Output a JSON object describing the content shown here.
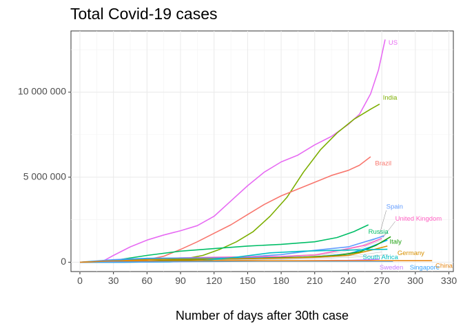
{
  "chart_data": {
    "type": "line",
    "title": "Total Covid-19 cases",
    "xlabel": "Number of days after 30th case",
    "ylabel": "",
    "xlim": [
      -8,
      334
    ],
    "ylim": [
      -550000,
      13600000
    ],
    "x_ticks": [
      0,
      30,
      60,
      90,
      120,
      150,
      180,
      210,
      240,
      270,
      300,
      330
    ],
    "y_ticks": [
      0,
      5000000,
      10000000
    ],
    "y_tick_labels": [
      "0",
      "5 000 000",
      "10 000 000"
    ],
    "grid": true,
    "legend": "none (direct labels)",
    "series": [
      {
        "name": "US",
        "color": "#e76bf3",
        "x": [
          0,
          20,
          30,
          45,
          60,
          75,
          90,
          105,
          120,
          135,
          150,
          165,
          180,
          195,
          210,
          225,
          240,
          250,
          260,
          267,
          273
        ],
        "y": [
          0,
          40000,
          400000,
          900000,
          1300000,
          1600000,
          1850000,
          2150000,
          2700000,
          3600000,
          4500000,
          5300000,
          5900000,
          6300000,
          6900000,
          7400000,
          8100000,
          8700000,
          9900000,
          11300000,
          13100000
        ]
      },
      {
        "name": "India",
        "color": "#7cae00",
        "x": [
          0,
          30,
          50,
          70,
          90,
          110,
          125,
          140,
          155,
          170,
          185,
          200,
          215,
          230,
          245,
          260,
          268
        ],
        "y": [
          0,
          500,
          5000,
          30000,
          150000,
          400000,
          750000,
          1200000,
          1800000,
          2700000,
          3800000,
          5300000,
          6600000,
          7600000,
          8400000,
          9000000,
          9300000
        ]
      },
      {
        "name": "Brazil",
        "color": "#f8766d",
        "x": [
          0,
          30,
          60,
          75,
          90,
          105,
          120,
          135,
          150,
          165,
          180,
          195,
          210,
          225,
          240,
          250,
          260
        ],
        "y": [
          0,
          20000,
          150000,
          350000,
          750000,
          1200000,
          1700000,
          2200000,
          2800000,
          3400000,
          3900000,
          4300000,
          4700000,
          5100000,
          5400000,
          5700000,
          6200000
        ]
      },
      {
        "name": "Russia",
        "color": "#00be67",
        "x": [
          0,
          30,
          60,
          90,
          120,
          150,
          180,
          210,
          230,
          245,
          258
        ],
        "y": [
          0,
          100000,
          400000,
          650000,
          800000,
          950000,
          1050000,
          1200000,
          1450000,
          1800000,
          2200000
        ]
      },
      {
        "name": "Spain",
        "color": "#619cff",
        "x": [
          0,
          30,
          60,
          90,
          120,
          150,
          180,
          210,
          240,
          255,
          265,
          272
        ],
        "y": [
          0,
          150000,
          230000,
          250000,
          270000,
          320000,
          450000,
          700000,
          900000,
          1200000,
          1400000,
          1550000
        ]
      },
      {
        "name": "United Kingdom",
        "color": "#ff61c3",
        "x": [
          0,
          30,
          60,
          90,
          120,
          150,
          180,
          210,
          240,
          255,
          270
        ],
        "y": [
          0,
          60000,
          180000,
          250000,
          290000,
          310000,
          340000,
          420000,
          800000,
          1000000,
          1400000
        ]
      },
      {
        "name": "Italy",
        "color": "#00a9ff",
        "x": [
          0,
          30,
          60,
          90,
          120,
          150,
          180,
          210,
          240,
          260,
          275
        ],
        "y": [
          0,
          100000,
          200000,
          230000,
          240000,
          250000,
          270000,
          310000,
          480000,
          900000,
          1300000
        ]
      },
      {
        "name": "Italy (2)",
        "color": "#1ea00f",
        "x": [
          0,
          40,
          80,
          120,
          160,
          200,
          230,
          250,
          265,
          278
        ],
        "y": [
          0,
          50000,
          120000,
          180000,
          230000,
          300000,
          400000,
          600000,
          1000000,
          1500000
        ]
      },
      {
        "name": "Germany",
        "color": "#d89000",
        "x": [
          0,
          30,
          60,
          90,
          120,
          150,
          180,
          210,
          240,
          260,
          275
        ],
        "y": [
          0,
          70000,
          160000,
          185000,
          195000,
          210000,
          240000,
          290000,
          400000,
          700000,
          950000
        ]
      },
      {
        "name": "South Africa",
        "color": "#00bfc4",
        "x": [
          0,
          40,
          80,
          110,
          140,
          170,
          200,
          230,
          260,
          275
        ],
        "y": [
          0,
          3000,
          20000,
          100000,
          300000,
          550000,
          650000,
          700000,
          740000,
          760000
        ]
      },
      {
        "name": "Sweden",
        "color": "#c77cff",
        "x": [
          0,
          40,
          80,
          120,
          160,
          200,
          240,
          260,
          268
        ],
        "y": [
          0,
          10000,
          30000,
          60000,
          80000,
          90000,
          110000,
          150000,
          180000
        ]
      },
      {
        "name": "Singapore",
        "color": "#35a2ff",
        "x": [
          0,
          40,
          60,
          90,
          120,
          160,
          200,
          240,
          280
        ],
        "y": [
          0,
          1000,
          15000,
          35000,
          45000,
          55000,
          57000,
          58000,
          58000
        ]
      },
      {
        "name": "China",
        "color": "#e68613",
        "x": [
          0,
          10,
          20,
          30,
          60,
          120,
          200,
          280,
          315
        ],
        "y": [
          0,
          20000,
          60000,
          80000,
          82000,
          84000,
          86000,
          88000,
          90000
        ]
      }
    ],
    "background_series": {
      "color": "#bdbdbd",
      "lines": [
        {
          "x": [
            0,
            60,
            120,
            180,
            220,
            250,
            275
          ],
          "y": [
            0,
            150000,
            250000,
            350000,
            500000,
            900000,
            1700000
          ]
        },
        {
          "x": [
            0,
            60,
            120,
            180,
            220,
            250,
            270
          ],
          "y": [
            0,
            100000,
            200000,
            300000,
            450000,
            800000,
            1300000
          ]
        },
        {
          "x": [
            0,
            60,
            120,
            180,
            220,
            250,
            265
          ],
          "y": [
            0,
            80000,
            170000,
            260000,
            380000,
            650000,
            1050000
          ]
        },
        {
          "x": [
            0,
            60,
            120,
            180,
            220,
            250,
            262
          ],
          "y": [
            0,
            60000,
            140000,
            220000,
            320000,
            520000,
            800000
          ]
        },
        {
          "x": [
            0,
            60,
            120,
            180,
            220,
            250,
            270
          ],
          "y": [
            0,
            50000,
            120000,
            200000,
            280000,
            420000,
            600000
          ]
        },
        {
          "x": [
            0,
            60,
            120,
            180,
            220,
            255,
            275
          ],
          "y": [
            0,
            40000,
            100000,
            160000,
            230000,
            330000,
            450000
          ]
        }
      ]
    },
    "annotations": [
      {
        "text": "US",
        "x": 276,
        "y": 12900000,
        "color": "#e76bf3"
      },
      {
        "text": "India",
        "x": 271,
        "y": 9650000,
        "color": "#7cae00"
      },
      {
        "text": "Brazil",
        "x": 264,
        "y": 5800000,
        "color": "#f8766d"
      },
      {
        "text": "Spain",
        "x": 274,
        "y": 3250000,
        "color": "#619cff"
      },
      {
        "text": "United Kingdom",
        "x": 282,
        "y": 2550000,
        "color": "#ff61c3"
      },
      {
        "text": "Russia",
        "x": 258,
        "y": 1780000,
        "color": "#00be67"
      },
      {
        "text": "Italy",
        "x": 277,
        "y": 1180000,
        "color": "#1ea00f"
      },
      {
        "text": "Germany",
        "x": 284,
        "y": 520000,
        "color": "#d89000"
      },
      {
        "text": "South Africa",
        "x": 253,
        "y": 280000,
        "color": "#00bfc4"
      },
      {
        "text": "Sweden",
        "x": 268,
        "y": -320000,
        "color": "#c77cff"
      },
      {
        "text": "Singapore",
        "x": 295,
        "y": -320000,
        "color": "#35a2ff"
      },
      {
        "text": "China",
        "x": 318,
        "y": -230000,
        "color": "#e68613"
      }
    ]
  }
}
